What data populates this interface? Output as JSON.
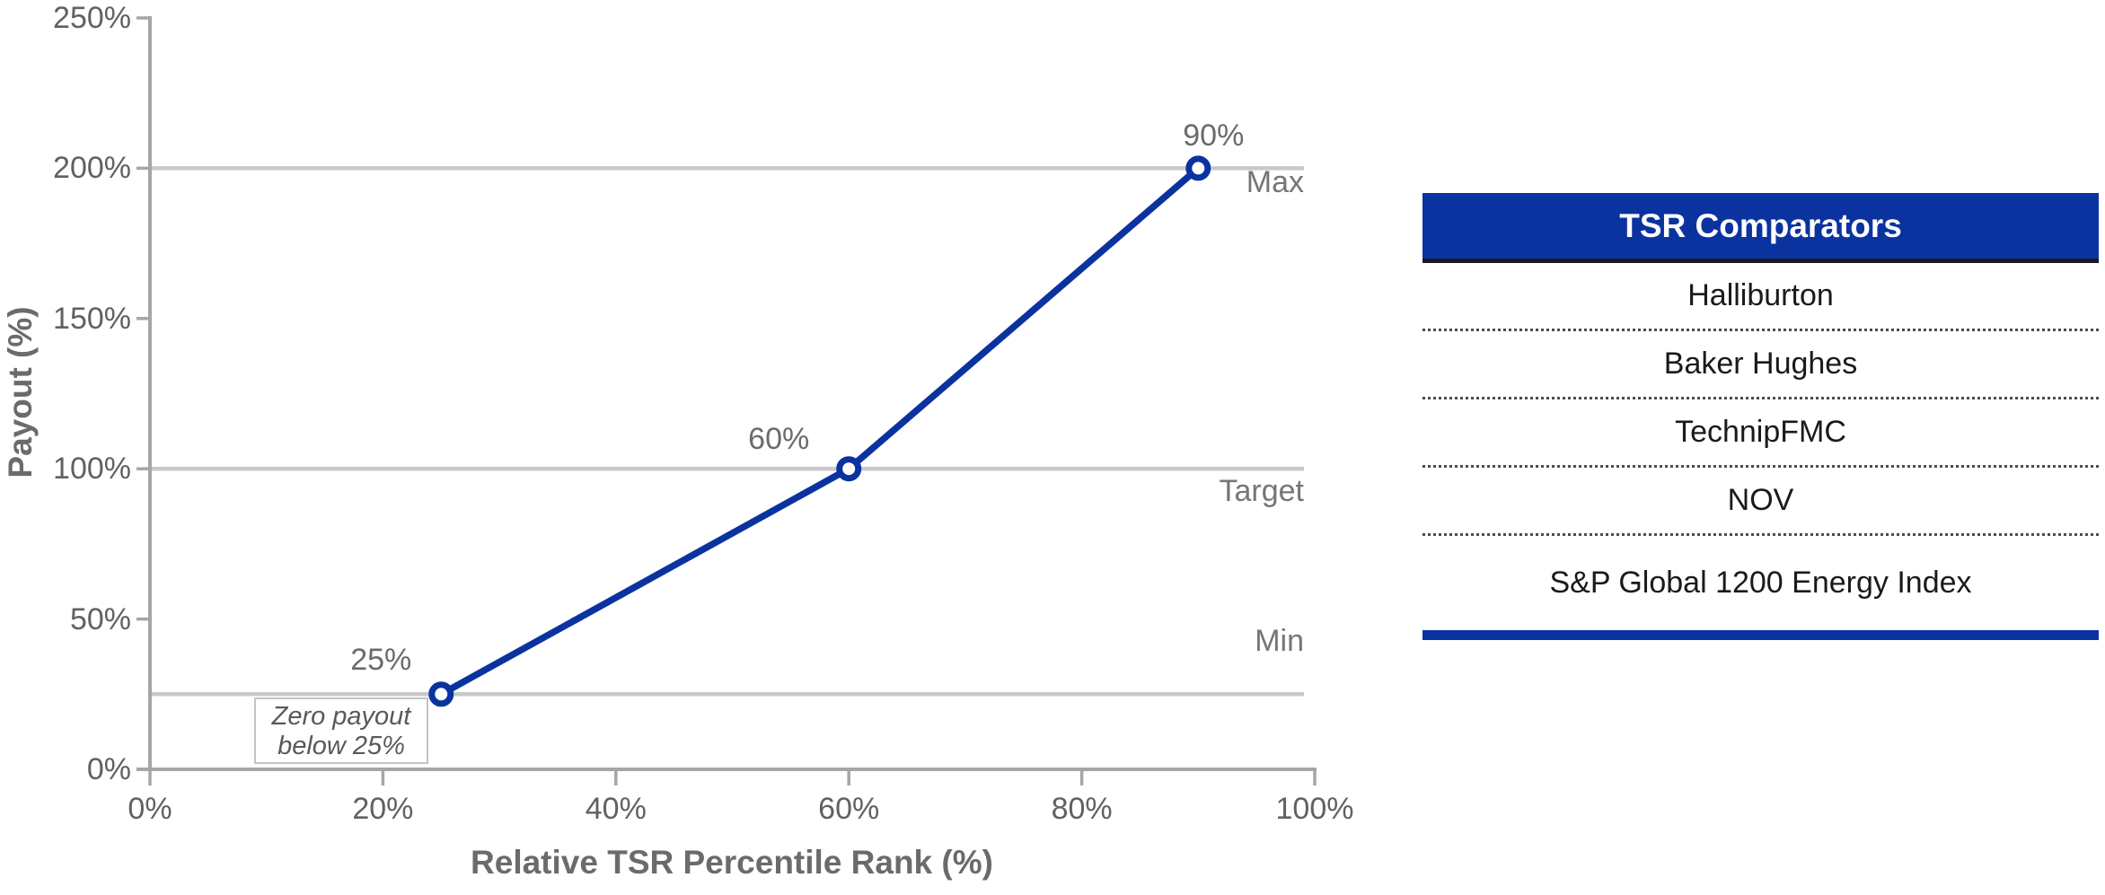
{
  "chart_data": {
    "type": "line",
    "title": "",
    "xlabel": "Relative TSR Percentile Rank (%)",
    "ylabel": "Payout (%)",
    "x": [
      25,
      60,
      90
    ],
    "y": [
      25,
      100,
      200
    ],
    "point_labels": [
      "25%",
      "60%",
      "90%"
    ],
    "x_ticks": [
      {
        "value": 0,
        "label": "0%"
      },
      {
        "value": 20,
        "label": "20%"
      },
      {
        "value": 40,
        "label": "40%"
      },
      {
        "value": 60,
        "label": "60%"
      },
      {
        "value": 80,
        "label": "80%"
      },
      {
        "value": 100,
        "label": "100%"
      }
    ],
    "y_ticks": [
      {
        "value": 0,
        "label": "0%"
      },
      {
        "value": 50,
        "label": "50%"
      },
      {
        "value": 100,
        "label": "100%"
      },
      {
        "value": 150,
        "label": "150%"
      },
      {
        "value": 200,
        "label": "200%"
      },
      {
        "value": 250,
        "label": "250%"
      }
    ],
    "xlim": [
      0,
      100
    ],
    "ylim": [
      0,
      250
    ],
    "grid": "horizontal reference lines only",
    "legend": "none",
    "reference_lines": [
      {
        "value": 200,
        "label": "Max"
      },
      {
        "value": 100,
        "label": "Target"
      },
      {
        "value": 25,
        "label": "Min"
      }
    ],
    "annotation": {
      "line1": "Zero payout",
      "line2": "below 25%"
    }
  },
  "table": {
    "header": "TSR Comparators",
    "rows": [
      "Halliburton",
      "Baker Hughes",
      "TechnipFMC",
      "NOV",
      "S&P Global 1200 Energy Index"
    ]
  },
  "colors": {
    "accent_blue": "#0b33a0",
    "gridline_gray": "#c9c9c9",
    "axis_gray": "#a6a6a6",
    "tick_text_gray": "#616161",
    "label_text_gray": "#6b6b6b",
    "table_text": "#1a1a1a",
    "header_text": "#ffffff"
  }
}
